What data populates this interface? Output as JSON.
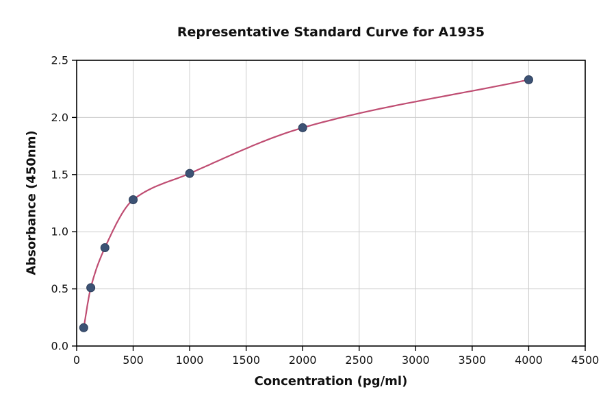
{
  "chart_data": {
    "type": "scatter",
    "title": "Representative Standard Curve for A1935",
    "xlabel": "Concentration (pg/ml)",
    "ylabel": "Absorbance (450nm)",
    "xlim": [
      0,
      4500
    ],
    "ylim": [
      0,
      2.5
    ],
    "xticks": [
      0,
      500,
      1000,
      1500,
      2000,
      2500,
      3000,
      3500,
      4000,
      4500
    ],
    "xtick_labels": [
      "0",
      "500",
      "1000",
      "1500",
      "2000",
      "2500",
      "3000",
      "3500",
      "4000",
      "4500"
    ],
    "yticks": [
      0,
      0.5,
      1.0,
      1.5,
      2.0,
      2.5
    ],
    "ytick_labels": [
      "0.0",
      "0.5",
      "1.0",
      "1.5",
      "2.0",
      "2.5"
    ],
    "grid": true,
    "legend": "none",
    "series": [
      {
        "name": "Standard points",
        "type": "scatter",
        "x": [
          62.5,
          125,
          250,
          500,
          1000,
          2000,
          4000
        ],
        "y": [
          0.16,
          0.51,
          0.86,
          1.28,
          1.51,
          1.91,
          2.33
        ]
      },
      {
        "name": "Fitted curve",
        "type": "line",
        "fit": "smooth-through-points"
      }
    ],
    "colors": {
      "points": "#3c5274",
      "point_edge": "#2b3c59",
      "curve": "#bf4d72",
      "grid": "#cccccc",
      "axis": "#000000",
      "text": "#111111",
      "background": "#ffffff"
    }
  }
}
